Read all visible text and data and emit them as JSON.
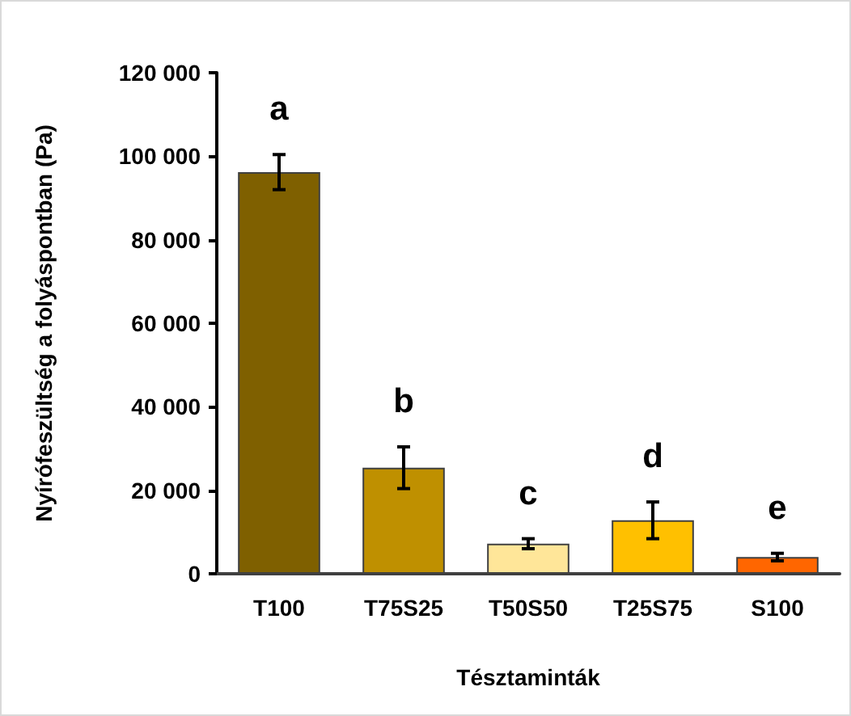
{
  "chart_data": {
    "type": "bar",
    "xlabel": "Tésztaminták",
    "ylabel": "Nyírófeszültség a folyáspontban (Pa)",
    "categories": [
      "T100",
      "T75S25",
      "T50S50",
      "T25S75",
      "S100"
    ],
    "values": [
      96200,
      25400,
      7200,
      12800,
      4000
    ],
    "colors": [
      "#7f6000",
      "#bf9000",
      "#ffe699",
      "#ffc000",
      "#ff6600"
    ],
    "errors": [
      4200,
      5000,
      1200,
      4400,
      900
    ],
    "ylim": [
      0,
      120000
    ],
    "yticks": [
      0,
      {
        "value": 20000,
        "label": "20 000"
      },
      {
        "value": 40000,
        "label": "40 000"
      },
      {
        "value": 60000,
        "label": "60 000"
      },
      {
        "value": 80000,
        "label": "80 000"
      },
      {
        "value": 100000,
        "label": "100 000"
      },
      {
        "value": 120000,
        "label": "120 000"
      }
    ],
    "annotations": [
      "a",
      "b",
      "c",
      "d",
      "e"
    ],
    "grid": false
  }
}
